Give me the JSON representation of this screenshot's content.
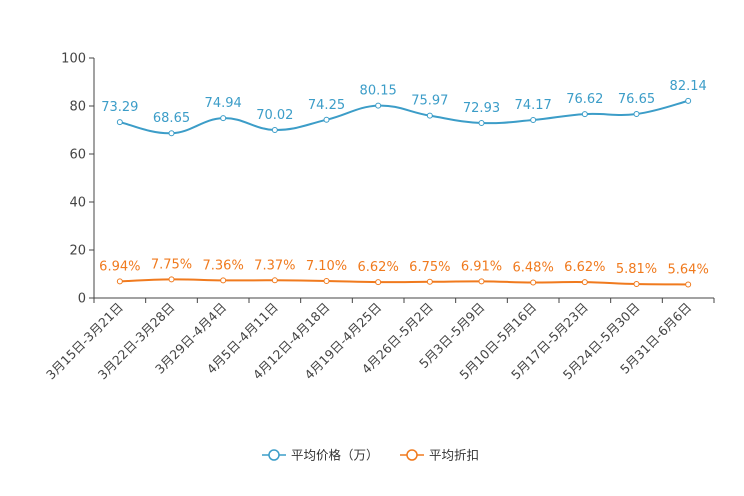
{
  "chart_data": {
    "type": "line",
    "categories": [
      "3月15日-3月21日",
      "3月22日-3月28日",
      "3月29日-4月4日",
      "4月5日-4月11日",
      "4月12日-4月18日",
      "4月19日-4月25日",
      "4月26日-5月2日",
      "5月3日-5月9日",
      "5月10日-5月16日",
      "5月17日-5月23日",
      "5月24日-5月30日",
      "5月31日-6月6日"
    ],
    "yticks": [
      "0",
      "20",
      "40",
      "60",
      "80",
      "100"
    ],
    "ylim": [
      0,
      100
    ],
    "series": [
      {
        "name": "平均价格（万）",
        "color": "#3c9dc8",
        "values": [
          73.29,
          68.65,
          74.94,
          70.02,
          74.25,
          80.15,
          75.97,
          72.93,
          74.17,
          76.62,
          76.65,
          82.14
        ],
        "labels": [
          "73.29",
          "68.65",
          "74.94",
          "70.02",
          "74.25",
          "80.15",
          "75.97",
          "72.93",
          "74.17",
          "76.62",
          "76.65",
          "82.14"
        ]
      },
      {
        "name": "平均折扣",
        "color": "#f07a1e",
        "values": [
          6.94,
          7.75,
          7.36,
          7.37,
          7.1,
          6.62,
          6.75,
          6.91,
          6.48,
          6.62,
          5.81,
          5.64
        ],
        "labels": [
          "6.94%",
          "7.75%",
          "7.36%",
          "7.37%",
          "7.10%",
          "6.62%",
          "6.75%",
          "6.91%",
          "6.48%",
          "6.62%",
          "5.81%",
          "5.64%"
        ]
      }
    ]
  }
}
